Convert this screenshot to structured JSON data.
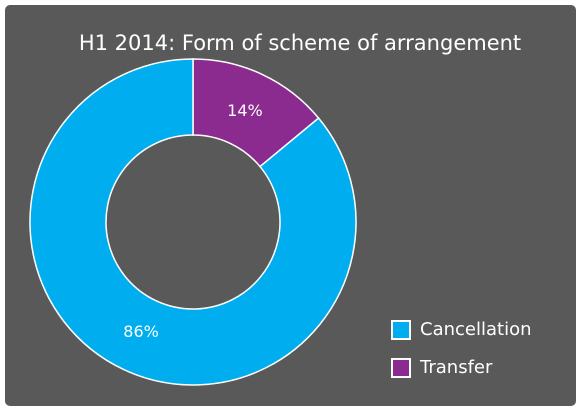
{
  "chart_data": {
    "type": "donut",
    "title": "H1 2014: Form of scheme of arrangement",
    "categories": [
      "Cancellation",
      "Transfer"
    ],
    "values": [
      86,
      14
    ],
    "value_labels": [
      "86%",
      "14%"
    ],
    "colors": [
      "#00aeef",
      "#8b2a8f"
    ],
    "legend": "bottom-right"
  }
}
